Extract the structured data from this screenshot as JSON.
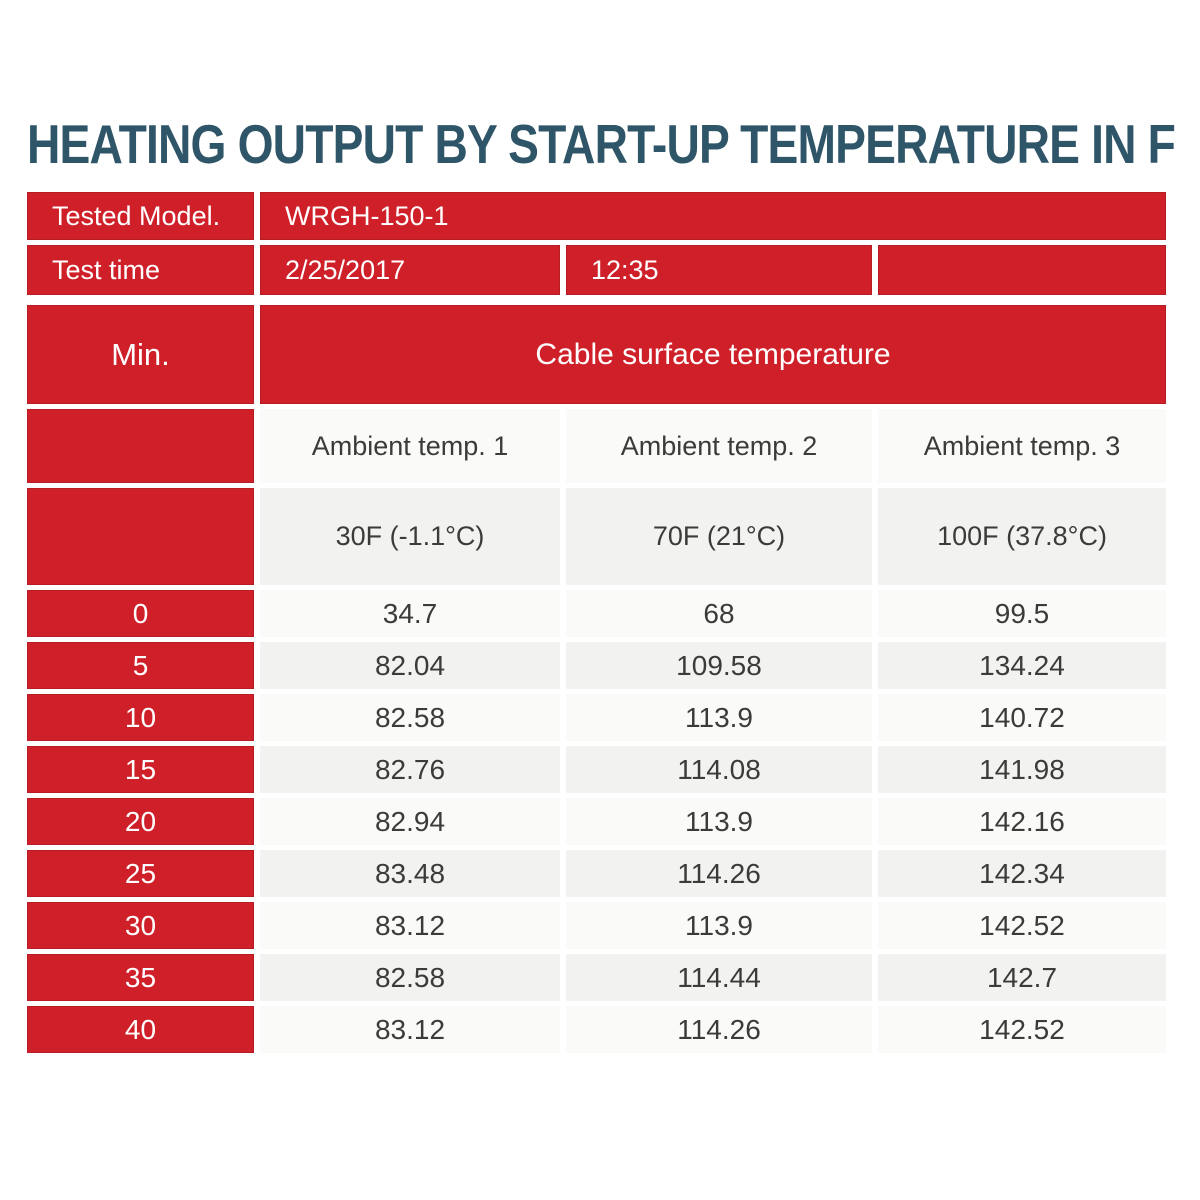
{
  "title": {
    "text": "HEATING OUTPUT BY START-UP TEMPERATURE IN F",
    "color": "#2F5568"
  },
  "colors": {
    "header_red": "#CF2029",
    "cell_light": "#FAFAF8",
    "cell_alt": "#F2F2F0",
    "cell_text": "#3B3B39",
    "header_text": "#FFFFFF"
  },
  "info": {
    "tested_model_label": "Tested Model.",
    "tested_model_value": "WRGH-150-1",
    "test_time_label": "Test time",
    "test_date_value": "2/25/2017",
    "test_clock_value": "12:35"
  },
  "table": {
    "min_header": "Min.",
    "surface_header": "Cable surface temperature",
    "ambient_headers": [
      "Ambient temp. 1",
      "Ambient temp. 2",
      "Ambient temp. 3"
    ],
    "startup_temps": [
      "30F (-1.1°C)",
      "70F (21°C)",
      "100F (37.8°C)"
    ],
    "rows": [
      {
        "min": "0",
        "values": [
          "34.7",
          "68",
          "99.5"
        ]
      },
      {
        "min": "5",
        "values": [
          "82.04",
          "109.58",
          "134.24"
        ]
      },
      {
        "min": "10",
        "values": [
          "82.58",
          "113.9",
          "140.72"
        ]
      },
      {
        "min": "15",
        "values": [
          "82.76",
          "114.08",
          "141.98"
        ]
      },
      {
        "min": "20",
        "values": [
          "82.94",
          "113.9",
          "142.16"
        ]
      },
      {
        "min": "25",
        "values": [
          "83.48",
          "114.26",
          "142.34"
        ]
      },
      {
        "min": "30",
        "values": [
          "83.12",
          "113.9",
          "142.52"
        ]
      },
      {
        "min": "35",
        "values": [
          "82.58",
          "114.44",
          "142.7"
        ]
      },
      {
        "min": "40",
        "values": [
          "83.12",
          "114.26",
          "142.52"
        ]
      }
    ]
  },
  "chart_data": {
    "type": "table",
    "title": "HEATING OUTPUT BY START-UP TEMPERATURE IN F",
    "xlabel": "Min.",
    "ylabel": "Cable surface temperature",
    "tested_model": "WRGH-150-1",
    "test_date": "2/25/2017",
    "test_time": "12:35",
    "categories": [
      0,
      5,
      10,
      15,
      20,
      25,
      30,
      35,
      40
    ],
    "series": [
      {
        "name": "Ambient temp. 1 30F (-1.1°C)",
        "values": [
          34.7,
          82.04,
          82.58,
          82.76,
          82.94,
          83.48,
          83.12,
          82.58,
          83.12
        ]
      },
      {
        "name": "Ambient temp. 2 70F (21°C)",
        "values": [
          68,
          109.58,
          113.9,
          114.08,
          113.9,
          114.26,
          113.9,
          114.44,
          114.26
        ]
      },
      {
        "name": "Ambient temp. 3 100F (37.8°C)",
        "values": [
          99.5,
          134.24,
          140.72,
          141.98,
          142.16,
          142.34,
          142.52,
          142.7,
          142.52
        ]
      }
    ],
    "legend_position": "none",
    "grid": false
  }
}
